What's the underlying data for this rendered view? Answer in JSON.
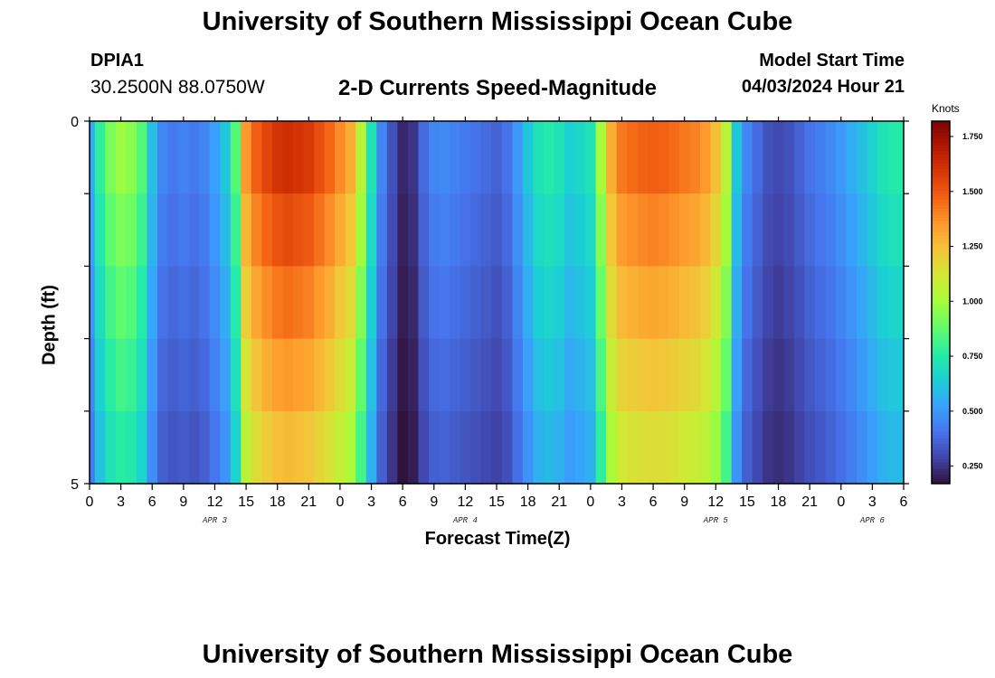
{
  "header": {
    "title": "University of Southern Mississippi Ocean Cube",
    "station": "DPIA1",
    "coordinates": "30.2500N  88.0750W",
    "subtitle": "2-D Currents Speed-Magnitude",
    "model_start_label": "Model Start Time",
    "model_start_value": "04/03/2024 Hour 21"
  },
  "footer": {
    "title": "University of Southern Mississippi Ocean Cube"
  },
  "colors": {
    "colormap": [
      "#30123b",
      "#4145ab",
      "#4675ed",
      "#39a2fc",
      "#1bcfd4",
      "#24eca6",
      "#61fc6c",
      "#a4fc3b",
      "#d1e834",
      "#f3c63a",
      "#fe9b2d",
      "#f36315",
      "#d93806",
      "#b11901",
      "#7a0402"
    ]
  },
  "chart_data": {
    "type": "heatmap",
    "title": "2-D Currents Speed-Magnitude",
    "xlabel": "Forecast Time(Z)",
    "ylabel": "Depth (ft)",
    "colorbar_label": "Knots",
    "zlim": [
      0.17,
      1.82
    ],
    "colorbar_ticks": [
      {
        "value": 0.25,
        "label": "0.250"
      },
      {
        "value": 0.5,
        "label": "0.500"
      },
      {
        "value": 0.75,
        "label": "0.750"
      },
      {
        "value": 1.0,
        "label": "1.000"
      },
      {
        "value": 1.25,
        "label": "1.250"
      },
      {
        "value": 1.5,
        "label": "1.500"
      },
      {
        "value": 1.75,
        "label": "1.750"
      }
    ],
    "x_start_hour": 0,
    "x_end_hour": 78,
    "x_step_hours": 1,
    "x_ticks": [
      {
        "hour": 0,
        "label": "0"
      },
      {
        "hour": 3,
        "label": "3"
      },
      {
        "hour": 6,
        "label": "6"
      },
      {
        "hour": 9,
        "label": "9"
      },
      {
        "hour": 12,
        "label": "12"
      },
      {
        "hour": 15,
        "label": "15"
      },
      {
        "hour": 18,
        "label": "18"
      },
      {
        "hour": 21,
        "label": "21"
      },
      {
        "hour": 24,
        "label": "0"
      },
      {
        "hour": 27,
        "label": "3"
      },
      {
        "hour": 30,
        "label": "6"
      },
      {
        "hour": 33,
        "label": "9"
      },
      {
        "hour": 36,
        "label": "12"
      },
      {
        "hour": 39,
        "label": "15"
      },
      {
        "hour": 42,
        "label": "18"
      },
      {
        "hour": 45,
        "label": "21"
      },
      {
        "hour": 48,
        "label": "0"
      },
      {
        "hour": 51,
        "label": "3"
      },
      {
        "hour": 54,
        "label": "6"
      },
      {
        "hour": 57,
        "label": "9"
      },
      {
        "hour": 60,
        "label": "12"
      },
      {
        "hour": 63,
        "label": "15"
      },
      {
        "hour": 66,
        "label": "18"
      },
      {
        "hour": 69,
        "label": "21"
      },
      {
        "hour": 72,
        "label": "0"
      },
      {
        "hour": 75,
        "label": "3"
      },
      {
        "hour": 78,
        "label": "6"
      }
    ],
    "date_labels": [
      {
        "hour": 12,
        "label": "APR 3"
      },
      {
        "hour": 36,
        "label": "APR 4"
      },
      {
        "hour": 60,
        "label": "APR 5"
      },
      {
        "hour": 75,
        "label": "APR 6"
      }
    ],
    "ylim": [
      0,
      5
    ],
    "y_ticks": [
      {
        "value": 0,
        "label": "0"
      },
      {
        "value": 5,
        "label": "5"
      }
    ],
    "depth_bins": 5,
    "speed_profile": [
      {
        "hour": 0,
        "speed": 0.55
      },
      {
        "hour": 1,
        "speed": 0.78
      },
      {
        "hour": 2,
        "speed": 0.92
      },
      {
        "hour": 3,
        "speed": 0.98
      },
      {
        "hour": 4,
        "speed": 0.95
      },
      {
        "hour": 5,
        "speed": 0.85
      },
      {
        "hour": 6,
        "speed": 0.6
      },
      {
        "hour": 7,
        "speed": 0.45
      },
      {
        "hour": 8,
        "speed": 0.42
      },
      {
        "hour": 9,
        "speed": 0.44
      },
      {
        "hour": 10,
        "speed": 0.42
      },
      {
        "hour": 11,
        "speed": 0.45
      },
      {
        "hour": 12,
        "speed": 0.52
      },
      {
        "hour": 13,
        "speed": 0.62
      },
      {
        "hour": 14,
        "speed": 0.85
      },
      {
        "hour": 15,
        "speed": 1.35
      },
      {
        "hour": 16,
        "speed": 1.48
      },
      {
        "hour": 17,
        "speed": 1.55
      },
      {
        "hour": 18,
        "speed": 1.6
      },
      {
        "hour": 19,
        "speed": 1.62
      },
      {
        "hour": 20,
        "speed": 1.6
      },
      {
        "hour": 21,
        "speed": 1.58
      },
      {
        "hour": 22,
        "speed": 1.52
      },
      {
        "hour": 23,
        "speed": 1.46
      },
      {
        "hour": 24,
        "speed": 1.38
      },
      {
        "hour": 25,
        "speed": 1.3
      },
      {
        "hour": 26,
        "speed": 1.05
      },
      {
        "hour": 27,
        "speed": 0.72
      },
      {
        "hour": 28,
        "speed": 0.45
      },
      {
        "hour": 29,
        "speed": 0.32
      },
      {
        "hour": 30,
        "speed": 0.22
      },
      {
        "hour": 31,
        "speed": 0.25
      },
      {
        "hour": 32,
        "speed": 0.38
      },
      {
        "hour": 33,
        "speed": 0.45
      },
      {
        "hour": 34,
        "speed": 0.46
      },
      {
        "hour": 35,
        "speed": 0.44
      },
      {
        "hour": 36,
        "speed": 0.42
      },
      {
        "hour": 37,
        "speed": 0.4
      },
      {
        "hour": 38,
        "speed": 0.38
      },
      {
        "hour": 39,
        "speed": 0.36
      },
      {
        "hour": 40,
        "speed": 0.4
      },
      {
        "hour": 41,
        "speed": 0.5
      },
      {
        "hour": 42,
        "speed": 0.62
      },
      {
        "hour": 43,
        "speed": 0.72
      },
      {
        "hour": 44,
        "speed": 0.75
      },
      {
        "hour": 45,
        "speed": 0.72
      },
      {
        "hour": 46,
        "speed": 0.65
      },
      {
        "hour": 47,
        "speed": 0.68
      },
      {
        "hour": 48,
        "speed": 0.72
      },
      {
        "hour": 49,
        "speed": 1.0
      },
      {
        "hour": 50,
        "speed": 1.3
      },
      {
        "hour": 51,
        "speed": 1.42
      },
      {
        "hour": 52,
        "speed": 1.45
      },
      {
        "hour": 53,
        "speed": 1.47
      },
      {
        "hour": 54,
        "speed": 1.48
      },
      {
        "hour": 55,
        "speed": 1.47
      },
      {
        "hour": 56,
        "speed": 1.45
      },
      {
        "hour": 57,
        "speed": 1.42
      },
      {
        "hour": 58,
        "speed": 1.4
      },
      {
        "hour": 59,
        "speed": 1.35
      },
      {
        "hour": 60,
        "speed": 1.25
      },
      {
        "hour": 61,
        "speed": 1.05
      },
      {
        "hour": 62,
        "speed": 0.62
      },
      {
        "hour": 63,
        "speed": 0.45
      },
      {
        "hour": 64,
        "speed": 0.38
      },
      {
        "hour": 65,
        "speed": 0.32
      },
      {
        "hour": 66,
        "speed": 0.3
      },
      {
        "hour": 67,
        "speed": 0.32
      },
      {
        "hour": 68,
        "speed": 0.36
      },
      {
        "hour": 69,
        "speed": 0.4
      },
      {
        "hour": 70,
        "speed": 0.43
      },
      {
        "hour": 71,
        "speed": 0.46
      },
      {
        "hour": 72,
        "speed": 0.5
      },
      {
        "hour": 73,
        "speed": 0.55
      },
      {
        "hour": 74,
        "speed": 0.6
      },
      {
        "hour": 75,
        "speed": 0.66
      },
      {
        "hour": 76,
        "speed": 0.72
      },
      {
        "hour": 77,
        "speed": 0.75
      },
      {
        "hour": 78,
        "speed": 0.75
      }
    ]
  }
}
